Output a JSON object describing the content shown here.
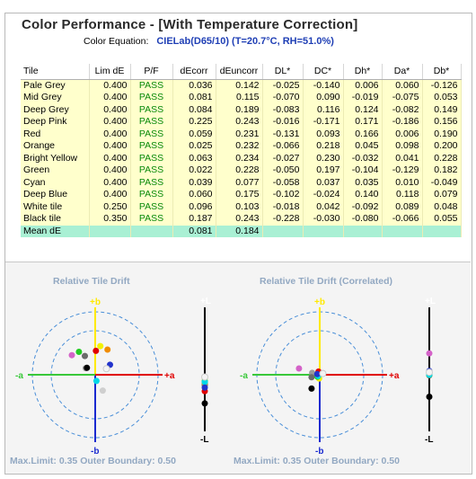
{
  "panel": {
    "title": "Color Performance - [With Temperature Correction]"
  },
  "equation": {
    "label": "Color Equation:",
    "value": "CIELab(D65/10) (T=20.7°C, RH=51.0%)"
  },
  "table": {
    "headers": [
      "Tile",
      "Lim dE",
      "P/F",
      "dEcorr",
      "dEuncorr",
      "DL*",
      "DC*",
      "Dh*",
      "Da*",
      "Db*"
    ],
    "rows": [
      [
        "Pale Grey",
        "0.400",
        "PASS",
        "0.036",
        "0.142",
        "-0.025",
        "-0.140",
        "0.006",
        "0.060",
        "-0.126"
      ],
      [
        "Mid Grey",
        "0.400",
        "PASS",
        "0.081",
        "0.115",
        "-0.070",
        "0.090",
        "-0.019",
        "-0.075",
        "0.053"
      ],
      [
        "Deep Grey",
        "0.400",
        "PASS",
        "0.084",
        "0.189",
        "-0.083",
        "0.116",
        "0.124",
        "-0.082",
        "0.149"
      ],
      [
        "Deep Pink",
        "0.400",
        "PASS",
        "0.225",
        "0.243",
        "-0.016",
        "-0.171",
        "0.171",
        "-0.186",
        "0.156"
      ],
      [
        "Red",
        "0.400",
        "PASS",
        "0.059",
        "0.231",
        "-0.131",
        "0.093",
        "0.166",
        "0.006",
        "0.190"
      ],
      [
        "Orange",
        "0.400",
        "PASS",
        "0.025",
        "0.232",
        "-0.066",
        "0.218",
        "0.045",
        "0.098",
        "0.200"
      ],
      [
        "Bright Yellow",
        "0.400",
        "PASS",
        "0.063",
        "0.234",
        "-0.027",
        "0.230",
        "-0.032",
        "0.041",
        "0.228"
      ],
      [
        "Green",
        "0.400",
        "PASS",
        "0.022",
        "0.228",
        "-0.050",
        "0.197",
        "-0.104",
        "-0.129",
        "0.182"
      ],
      [
        "Cyan",
        "0.400",
        "PASS",
        "0.039",
        "0.077",
        "-0.058",
        "0.037",
        "0.035",
        "0.010",
        "-0.049"
      ],
      [
        "Deep Blue",
        "0.400",
        "PASS",
        "0.060",
        "0.175",
        "-0.102",
        "-0.024",
        "0.140",
        "0.118",
        "0.079"
      ],
      [
        "White tile",
        "0.250",
        "PASS",
        "0.096",
        "0.103",
        "-0.018",
        "0.042",
        "-0.092",
        "0.089",
        "0.048"
      ],
      [
        "Black tile",
        "0.350",
        "PASS",
        "0.187",
        "0.243",
        "-0.228",
        "-0.030",
        "-0.080",
        "-0.066",
        "0.055"
      ]
    ],
    "mean": [
      "Mean dE",
      "",
      "",
      "0.081",
      "0.184",
      "",
      "",
      "",
      "",
      ""
    ]
  },
  "plots": [
    {
      "title": "Relative Tile Drift",
      "footer": "Max.Limit: 0.35  Outer Boundary: 0.50",
      "axis_labels": {
        "plus_b": "+b",
        "minus_b": "-b",
        "plus_a": "+a",
        "minus_a": "-a",
        "plus_L": "+L",
        "minus_L": "-L"
      },
      "points": [
        {
          "tile": "Pale Grey",
          "a": 0.06,
          "b": -0.126,
          "L": -0.025,
          "color": "#cfcfcf"
        },
        {
          "tile": "Mid Grey",
          "a": -0.075,
          "b": 0.053,
          "L": -0.07,
          "color": "#9a9a9a"
        },
        {
          "tile": "Deep Grey",
          "a": -0.082,
          "b": 0.149,
          "L": -0.083,
          "color": "#6b6b6b"
        },
        {
          "tile": "Deep Pink",
          "a": -0.186,
          "b": 0.156,
          "L": -0.016,
          "color": "#d462c8"
        },
        {
          "tile": "Red",
          "a": 0.006,
          "b": 0.19,
          "L": -0.131,
          "color": "#e00000"
        },
        {
          "tile": "Orange",
          "a": 0.098,
          "b": 0.2,
          "L": -0.066,
          "color": "#f08c00"
        },
        {
          "tile": "Bright Yellow",
          "a": 0.041,
          "b": 0.228,
          "L": -0.027,
          "color": "#f2f200"
        },
        {
          "tile": "Green",
          "a": -0.129,
          "b": 0.182,
          "L": -0.05,
          "color": "#22cc22"
        },
        {
          "tile": "Cyan",
          "a": 0.01,
          "b": -0.049,
          "L": -0.058,
          "color": "#00d8e8"
        },
        {
          "tile": "Deep Blue",
          "a": 0.118,
          "b": 0.079,
          "L": -0.102,
          "color": "#2233cc"
        },
        {
          "tile": "White tile",
          "a": 0.089,
          "b": 0.048,
          "L": -0.018,
          "color": "#f4f4f4"
        },
        {
          "tile": "Black tile",
          "a": -0.066,
          "b": 0.055,
          "L": -0.228,
          "color": "#000000"
        }
      ]
    },
    {
      "title": "Relative Tile Drift (Correlated)",
      "footer": "Max.Limit: 0.35  Outer Boundary: 0.50",
      "axis_labels": {
        "plus_b": "+b",
        "minus_b": "-b",
        "plus_a": "+a",
        "minus_a": "-a",
        "plus_L": "+L",
        "minus_L": "-L"
      },
      "points": [
        {
          "tile": "Deep Pink",
          "a": -0.165,
          "b": 0.05,
          "L": 0.17,
          "color": "#d462c8"
        },
        {
          "tile": "Mid Grey",
          "a": -0.06,
          "b": 0.015,
          "L": -0.002,
          "color": "#9a9a9a"
        },
        {
          "tile": "Deep Grey",
          "a": -0.065,
          "b": -0.02,
          "L": -0.006,
          "color": "#6b6b6b"
        },
        {
          "tile": "Red",
          "a": -0.01,
          "b": 0.025,
          "L": 0.0,
          "color": "#e00000"
        },
        {
          "tile": "Orange",
          "a": -0.012,
          "b": -0.005,
          "L": 0.0,
          "color": "#f08c00"
        },
        {
          "tile": "Bright Yellow",
          "a": -0.005,
          "b": -0.03,
          "L": 0.0,
          "color": "#f2f200"
        },
        {
          "tile": "Green",
          "a": -0.018,
          "b": -0.015,
          "L": 0.0,
          "color": "#22cc22"
        },
        {
          "tile": "Cyan",
          "a": -0.012,
          "b": -0.01,
          "L": 0.0,
          "color": "#00d8e8"
        },
        {
          "tile": "Deep Blue",
          "a": -0.02,
          "b": 0.005,
          "L": 0.03,
          "color": "#2233cc"
        },
        {
          "tile": "White tile",
          "a": 0.025,
          "b": 0.01,
          "L": 0.02,
          "color": "#f4f4f4"
        },
        {
          "tile": "Black tile",
          "a": -0.065,
          "b": -0.11,
          "L": -0.175,
          "color": "#000000"
        }
      ]
    }
  ],
  "scale": {
    "max_limit": 0.35,
    "outer_boundary": 0.5
  },
  "colors": {
    "axis_plus_b": "#ffea00",
    "axis_minus_b": "#1a2ad0",
    "axis_plus_a": "#e00000",
    "axis_minus_a": "#39c83a",
    "axis_L": "#000000",
    "circle": "#4a8fd8",
    "pass": "#0a8a0a"
  }
}
